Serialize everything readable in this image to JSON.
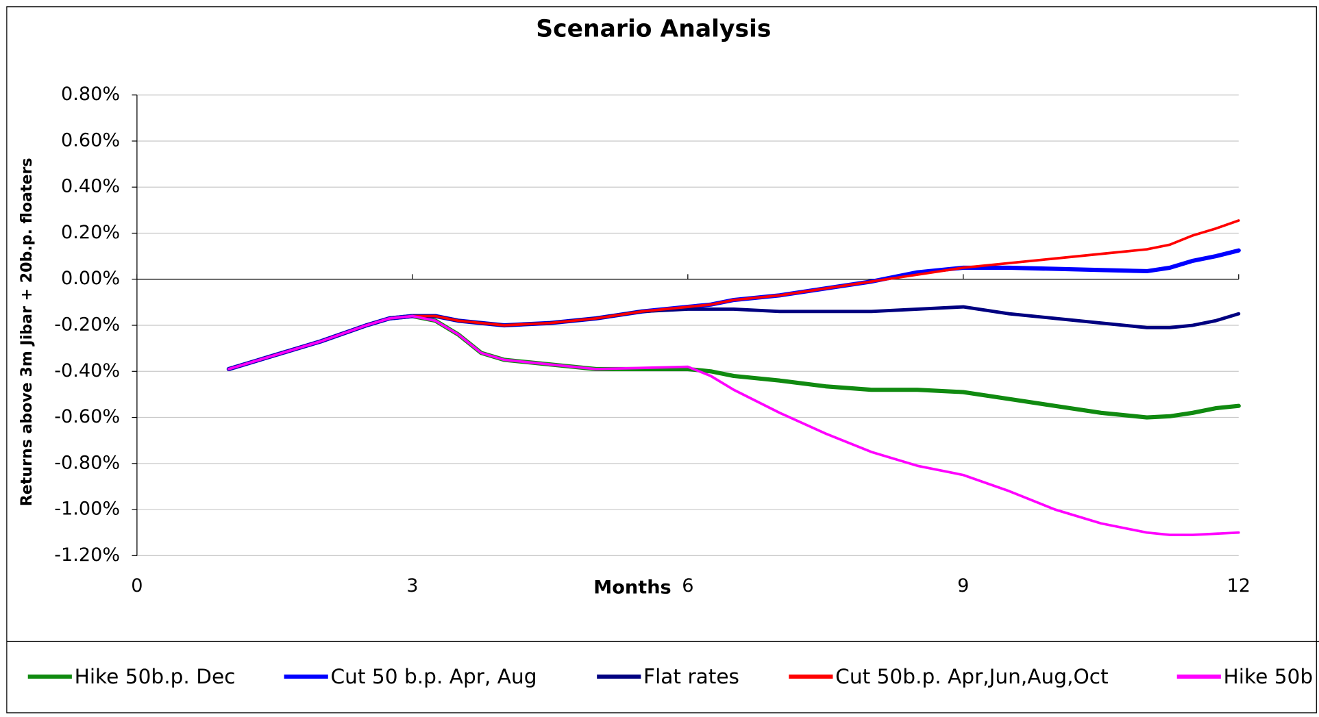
{
  "chart_data": {
    "type": "line",
    "title": "Scenario Analysis",
    "x_label": "Months",
    "y_label": "Returns above 3m Jibar + 20b.p. floaters",
    "xlim": [
      0,
      12
    ],
    "xticks": [
      0,
      3,
      6,
      9,
      12
    ],
    "ylim": [
      -1.2,
      0.8
    ],
    "yticks": [
      {
        "value": -1.2,
        "label": "-1.20%"
      },
      {
        "value": -1.0,
        "label": "-1.00%"
      },
      {
        "value": -0.8,
        "label": "-0.80%"
      },
      {
        "value": -0.6,
        "label": "-0.60%"
      },
      {
        "value": -0.4,
        "label": "-0.40%"
      },
      {
        "value": -0.2,
        "label": "-0.20%"
      },
      {
        "value": 0.0,
        "label": "0.00%"
      },
      {
        "value": 0.2,
        "label": "0.20%"
      },
      {
        "value": 0.4,
        "label": "0.40%"
      },
      {
        "value": 0.6,
        "label": "0.60%"
      },
      {
        "value": 0.8,
        "label": "0.80%"
      }
    ],
    "grid": true,
    "legend_position": "bottom",
    "x": [
      1,
      1.5,
      2,
      2.5,
      2.75,
      3,
      3.25,
      3.5,
      3.75,
      4,
      4.5,
      5,
      5.5,
      6,
      6.25,
      6.5,
      7,
      7.5,
      8,
      8.5,
      9,
      9.5,
      10,
      10.5,
      11,
      11.25,
      11.5,
      11.75,
      12
    ],
    "series": [
      {
        "name": "Hike 50b.p. Dec",
        "color": "#108a10",
        "values": [
          -0.39,
          -0.33,
          -0.27,
          -0.2,
          -0.17,
          -0.16,
          -0.18,
          -0.24,
          -0.32,
          -0.35,
          -0.37,
          -0.39,
          -0.39,
          -0.39,
          -0.4,
          -0.42,
          -0.44,
          -0.465,
          -0.48,
          -0.48,
          -0.49,
          -0.52,
          -0.55,
          -0.58,
          -0.6,
          -0.595,
          -0.58,
          -0.56,
          -0.55
        ]
      },
      {
        "name": "Cut 50 b.p. Apr, Aug",
        "color": "#0000ff",
        "values": [
          -0.39,
          -0.33,
          -0.27,
          -0.2,
          -0.17,
          -0.16,
          -0.16,
          -0.18,
          -0.19,
          -0.2,
          -0.19,
          -0.17,
          -0.14,
          -0.12,
          -0.11,
          -0.09,
          -0.07,
          -0.04,
          -0.01,
          0.03,
          0.05,
          0.05,
          0.045,
          0.04,
          0.035,
          0.05,
          0.08,
          0.1,
          0.125
        ]
      },
      {
        "name": "Flat rates",
        "color": "#000080",
        "values": [
          -0.39,
          -0.33,
          -0.27,
          -0.2,
          -0.17,
          -0.16,
          -0.16,
          -0.18,
          -0.19,
          -0.2,
          -0.19,
          -0.17,
          -0.14,
          -0.13,
          -0.13,
          -0.13,
          -0.14,
          -0.14,
          -0.14,
          -0.13,
          -0.12,
          -0.15,
          -0.17,
          -0.19,
          -0.21,
          -0.21,
          -0.2,
          -0.18,
          -0.15
        ]
      },
      {
        "name": "Cut 50b.p. Apr,Jun,Aug,Oct",
        "color": "#ff0000",
        "values": [
          -0.39,
          -0.33,
          -0.27,
          -0.2,
          -0.17,
          -0.16,
          -0.16,
          -0.18,
          -0.19,
          -0.2,
          -0.19,
          -0.17,
          -0.14,
          -0.12,
          -0.11,
          -0.09,
          -0.07,
          -0.04,
          -0.01,
          0.02,
          0.05,
          0.07,
          0.09,
          0.11,
          0.13,
          0.15,
          0.19,
          0.22,
          0.255
        ]
      },
      {
        "name": "Hike 50b",
        "color": "#ff00ff",
        "values": [
          -0.39,
          -0.33,
          -0.27,
          -0.2,
          -0.17,
          -0.16,
          -0.18,
          -0.24,
          -0.32,
          -0.35,
          -0.37,
          -0.39,
          -0.385,
          -0.38,
          -0.42,
          -0.48,
          -0.58,
          -0.67,
          -0.75,
          -0.81,
          -0.85,
          -0.92,
          -1.0,
          -1.06,
          -1.1,
          -1.11,
          -1.11,
          -1.105,
          -1.1
        ]
      }
    ]
  }
}
